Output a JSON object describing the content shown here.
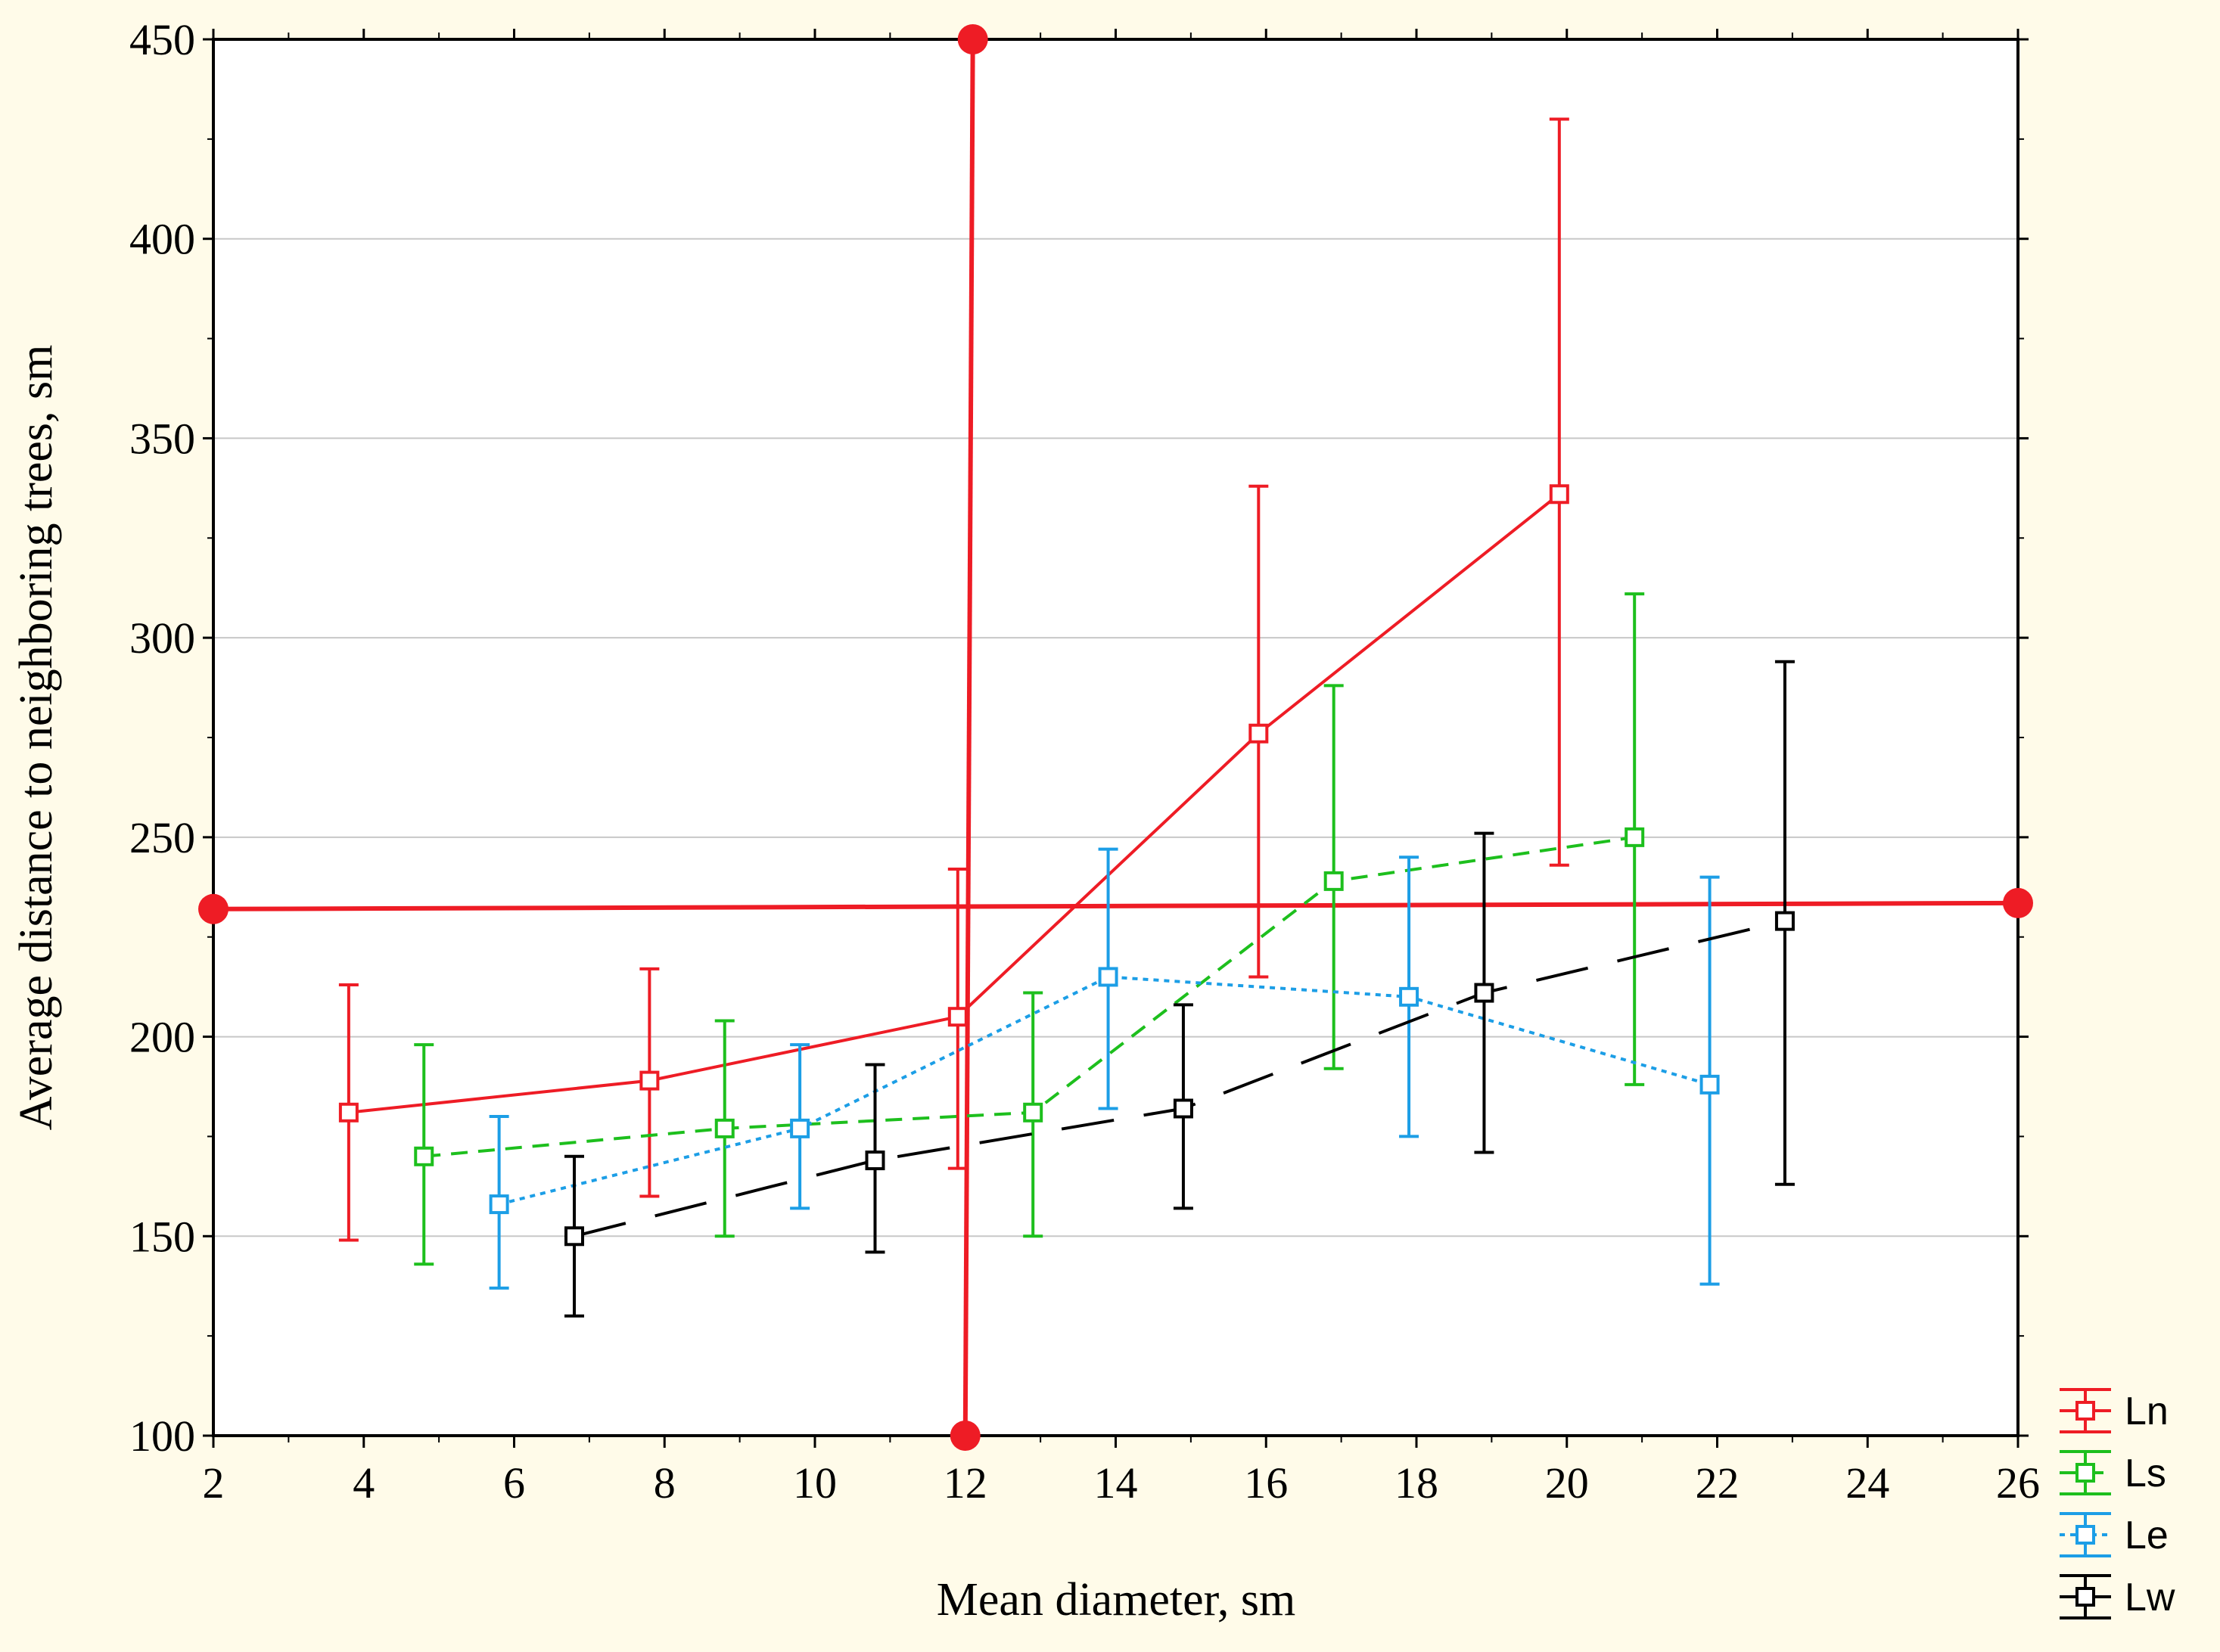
{
  "chart_data": {
    "type": "line",
    "xlabel": "Mean diameter, sm",
    "ylabel": "Average distance to neighboring trees, sm",
    "xlim": [
      2,
      26
    ],
    "ylim": [
      100,
      450
    ],
    "xticks": [
      2,
      4,
      6,
      8,
      10,
      12,
      14,
      16,
      18,
      20,
      22,
      24,
      26
    ],
    "yticks": [
      100,
      150,
      200,
      250,
      300,
      350,
      400,
      450
    ],
    "grid": "horizontal",
    "legend_position": "bottom-right",
    "series": [
      {
        "name": "Ln",
        "color": "#ee1c25",
        "dash": "solid",
        "x": [
          3.8,
          7.8,
          11.9,
          15.9,
          19.9
        ],
        "y": [
          181,
          189,
          205,
          276,
          336
        ],
        "err_low": [
          149,
          160,
          167,
          215,
          243
        ],
        "err_high": [
          213,
          217,
          242,
          338,
          430
        ]
      },
      {
        "name": "Ls",
        "color": "#1dbf1d",
        "dash": "dashed",
        "x": [
          4.8,
          8.8,
          12.9,
          16.9,
          20.9
        ],
        "y": [
          170,
          177,
          181,
          239,
          250
        ],
        "err_low": [
          143,
          150,
          150,
          192,
          188
        ],
        "err_high": [
          198,
          204,
          211,
          288,
          311
        ]
      },
      {
        "name": "Le",
        "color": "#1c9ee6",
        "dash": "dotted",
        "x": [
          5.8,
          9.8,
          13.9,
          17.9,
          21.9
        ],
        "y": [
          158,
          177,
          215,
          210,
          188
        ],
        "err_low": [
          137,
          157,
          182,
          175,
          138
        ],
        "err_high": [
          180,
          198,
          247,
          245,
          240
        ]
      },
      {
        "name": "Lw",
        "color": "#000000",
        "dash": "long-dash",
        "x": [
          6.8,
          10.8,
          14.9,
          18.9,
          22.9
        ],
        "y": [
          150,
          169,
          182,
          211,
          229
        ],
        "err_low": [
          130,
          146,
          157,
          171,
          163
        ],
        "err_high": [
          170,
          193,
          208,
          251,
          294
        ]
      }
    ],
    "reference_lines": [
      {
        "color": "#ee1c25",
        "x1": 2,
        "y1": 232,
        "x2": 26,
        "y2": 233.5
      },
      {
        "color": "#ee1c25",
        "x1": 12.1,
        "y1": 450,
        "x2": 12.0,
        "y2": 100
      }
    ]
  }
}
